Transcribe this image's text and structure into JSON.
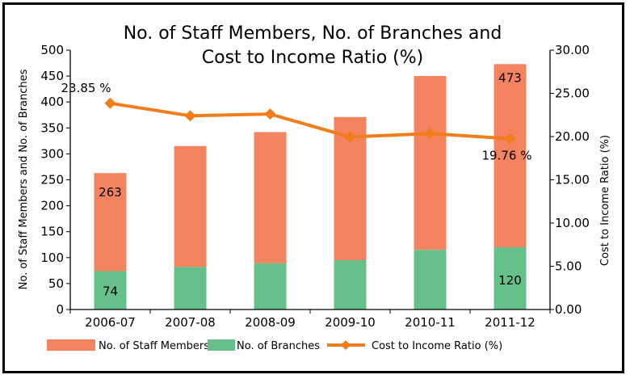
{
  "chart_data": {
    "type": "bar",
    "title_lines": [
      "No. of Staff Members, No. of Branches and",
      "Cost to Income Ratio (%)"
    ],
    "categories": [
      "2006-07",
      "2007-08",
      "2008-09",
      "2009-10",
      "2010-11",
      "2011-12"
    ],
    "series": [
      {
        "name": "No. of Staff Members",
        "kind": "bar",
        "stacked_total": true,
        "color": "#F4845F",
        "values": [
          263,
          315,
          342,
          371,
          450,
          473
        ]
      },
      {
        "name": "No. of Branches",
        "kind": "bar",
        "color": "#66C08A",
        "values": [
          74,
          82,
          89,
          95,
          115,
          120
        ]
      },
      {
        "name": "Cost to Income Ratio (%)",
        "kind": "line",
        "axis": "right",
        "color": "#F07D1A",
        "values": [
          23.85,
          22.4,
          22.6,
          19.95,
          20.35,
          19.76
        ]
      }
    ],
    "y_left": {
      "label": "No. of Staff Members and No. of Branches",
      "min": 0,
      "max": 500,
      "step": 50,
      "ticks": [
        "0",
        "50",
        "100",
        "150",
        "200",
        "250",
        "300",
        "350",
        "400",
        "450",
        "500"
      ]
    },
    "y_right": {
      "label": "Cost to Income Ratio (%)",
      "min": 0,
      "max": 30,
      "step": 5,
      "ticks": [
        "0.00",
        "5.00",
        "10.00",
        "15.00",
        "20.00",
        "25.00",
        "30.00"
      ]
    },
    "data_labels": [
      {
        "id": "label-staff-2006",
        "text": "263"
      },
      {
        "id": "label-branches-2006",
        "text": "74"
      },
      {
        "id": "label-ratio-2006",
        "text": "23.85 %"
      },
      {
        "id": "label-staff-2011",
        "text": "473"
      },
      {
        "id": "label-branches-2011",
        "text": "120"
      },
      {
        "id": "label-ratio-2011",
        "text": "19.76 %"
      }
    ],
    "legend": [
      "No. of Staff Members",
      "No. of Branches",
      "Cost to Income Ratio (%)"
    ],
    "legend_position": "bottom"
  }
}
